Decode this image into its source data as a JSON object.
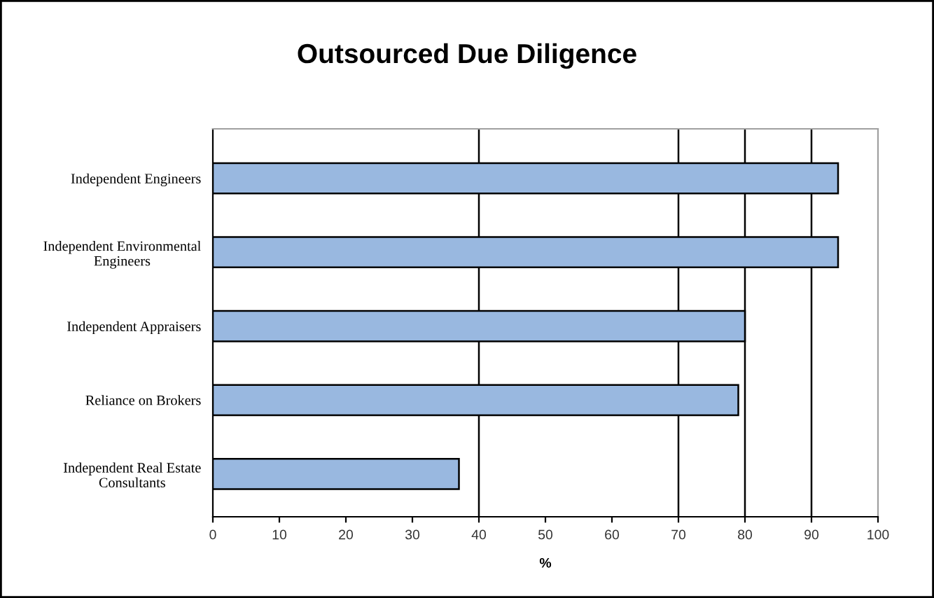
{
  "chart_data": {
    "type": "bar",
    "orientation": "horizontal",
    "title": "Outsourced Due Diligence",
    "xlabel": "%",
    "categories": [
      "Independent Engineers",
      "Independent Environmental\nEngineers",
      "Independent Appraisers",
      "Reliance on Brokers",
      "Independent Real Estate\nConsultants"
    ],
    "values": [
      94,
      94,
      80,
      79,
      37
    ],
    "color": "#99b8e0",
    "xlim": [
      0,
      100
    ],
    "xticks": [
      0,
      10,
      20,
      30,
      40,
      50,
      60,
      70,
      80,
      90,
      100
    ],
    "ref_lines": [
      {
        "axis": "x",
        "value": 40,
        "color": "#000000"
      },
      {
        "axis": "x",
        "value": 70,
        "color": "#000000"
      },
      {
        "axis": "x",
        "value": 80,
        "color": "#000000"
      },
      {
        "axis": "x",
        "value": 90,
        "color": "#000000"
      }
    ]
  }
}
